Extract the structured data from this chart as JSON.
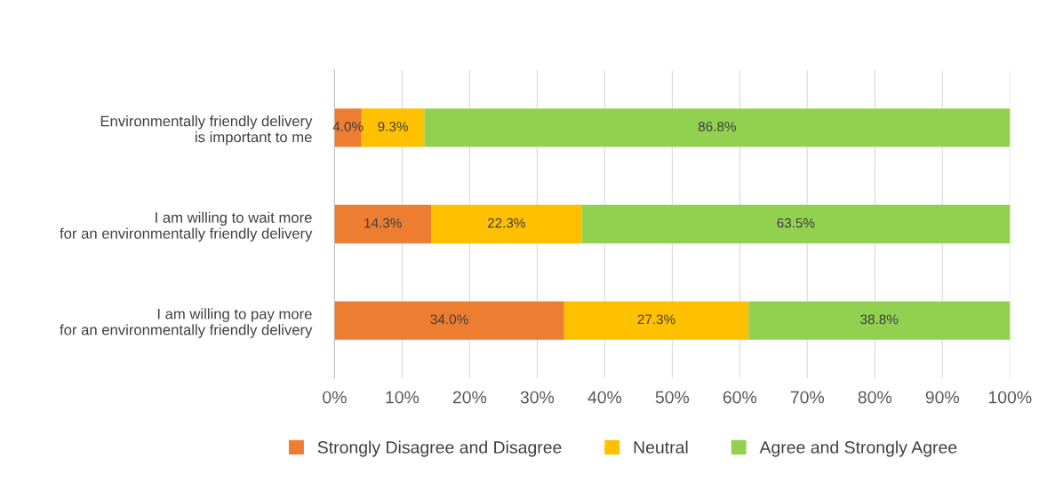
{
  "chart_data": {
    "type": "bar",
    "orientation": "horizontal",
    "stacked": true,
    "categories": [
      "Environmentally friendly delivery\nis important to me",
      "I am willing to wait more\nfor an environmentally friendly delivery",
      "I am willing to pay more\nfor an environmentally friendly delivery"
    ],
    "series": [
      {
        "name": "Strongly Disagree and Disagree",
        "color": "#ed7d31",
        "values": [
          4.0,
          14.3,
          34.0
        ],
        "value_labels": [
          "4.0%",
          "14.3%",
          "34.0%"
        ]
      },
      {
        "name": "Neutral",
        "color": "#ffc000",
        "values": [
          9.3,
          22.3,
          27.3
        ],
        "value_labels": [
          "9.3%",
          "22.3%",
          "27.3%"
        ]
      },
      {
        "name": "Agree and Strongly Agree",
        "color": "#92d050",
        "values": [
          86.8,
          63.5,
          38.8
        ],
        "value_labels": [
          "86.8%",
          "63.5%",
          "38.8%"
        ]
      }
    ],
    "xlim": [
      0,
      100
    ],
    "xticks": [
      {
        "value": 0,
        "label": "0%"
      },
      {
        "value": 10,
        "label": "10%"
      },
      {
        "value": 20,
        "label": "20%"
      },
      {
        "value": 30,
        "label": "30%"
      },
      {
        "value": 40,
        "label": "40%"
      },
      {
        "value": 50,
        "label": "50%"
      },
      {
        "value": 60,
        "label": "60%"
      },
      {
        "value": 70,
        "label": "70%"
      },
      {
        "value": 80,
        "label": "80%"
      },
      {
        "value": 90,
        "label": "90%"
      },
      {
        "value": 100,
        "label": "100%"
      }
    ],
    "grid": "x",
    "legend": "bottom"
  }
}
